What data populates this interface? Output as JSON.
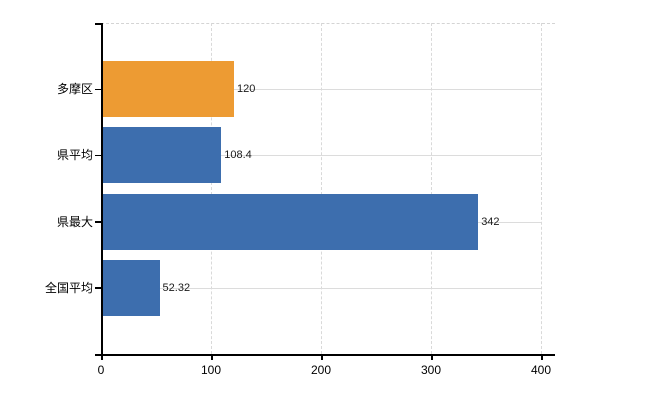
{
  "chart_data": {
    "type": "bar",
    "orientation": "horizontal",
    "title": "",
    "categories": [
      "多摩区",
      "県平均",
      "県最大",
      "全国平均"
    ],
    "values": [
      120,
      108.4,
      342,
      52.32
    ],
    "value_labels": [
      "120",
      "108.4",
      "342",
      "52.32"
    ],
    "bar_colors": [
      "#ED9B33",
      "#3D6EAE",
      "#3D6EAE",
      "#3D6EAE"
    ],
    "highlight_color": "#ED9B33",
    "default_bar_color": "#3D6EAE",
    "x_tick_values": [
      0,
      100,
      200,
      300,
      400
    ],
    "x_tick_labels": [
      "0",
      "100",
      "200",
      "300",
      "400"
    ],
    "xlim": [
      0,
      400
    ],
    "grid": true,
    "legend_position": "none",
    "axis_color": "#000000",
    "grid_color": "#d9d9d9",
    "background_color": "#ffffff"
  }
}
